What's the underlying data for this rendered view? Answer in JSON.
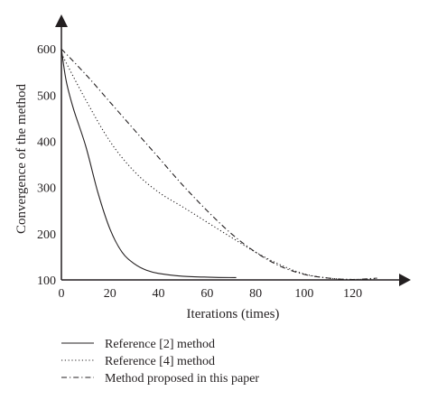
{
  "chart_data": {
    "type": "line",
    "title": "",
    "xlabel": "Iterations (times)",
    "ylabel": "Convergence of the method",
    "xlim": [
      0,
      135
    ],
    "ylim": [
      100,
      620
    ],
    "xticks": [
      0,
      20,
      40,
      60,
      80,
      100,
      120
    ],
    "yticks": [
      100,
      200,
      300,
      400,
      500,
      600
    ],
    "grid": false,
    "legend_position": "bottom-left",
    "series": [
      {
        "name": "Reference [2] method",
        "line_style": "solid",
        "color": "#231f20",
        "x": [
          0,
          2,
          5,
          10,
          15,
          20,
          25,
          30,
          35,
          40,
          50,
          60,
          72
        ],
        "y": [
          600,
          530,
          470,
          390,
          290,
          210,
          160,
          135,
          121,
          114,
          108,
          106,
          105
        ]
      },
      {
        "name": "Reference [4] method",
        "line_style": "dotted",
        "color": "#231f20",
        "x": [
          0,
          10,
          20,
          30,
          40,
          50,
          60,
          70,
          80,
          90,
          100,
          110,
          120,
          130
        ],
        "y": [
          590,
          490,
          400,
          335,
          290,
          258,
          225,
          192,
          160,
          133,
          113,
          104,
          101,
          103
        ]
      },
      {
        "name": "Method proposed in this paper",
        "line_style": "dash-dot",
        "color": "#231f20",
        "x": [
          0,
          10,
          20,
          30,
          40,
          50,
          60,
          70,
          80,
          90,
          100,
          110,
          120,
          130
        ],
        "y": [
          600,
          545,
          485,
          425,
          365,
          305,
          250,
          200,
          160,
          130,
          112,
          104,
          101,
          104
        ]
      }
    ]
  }
}
